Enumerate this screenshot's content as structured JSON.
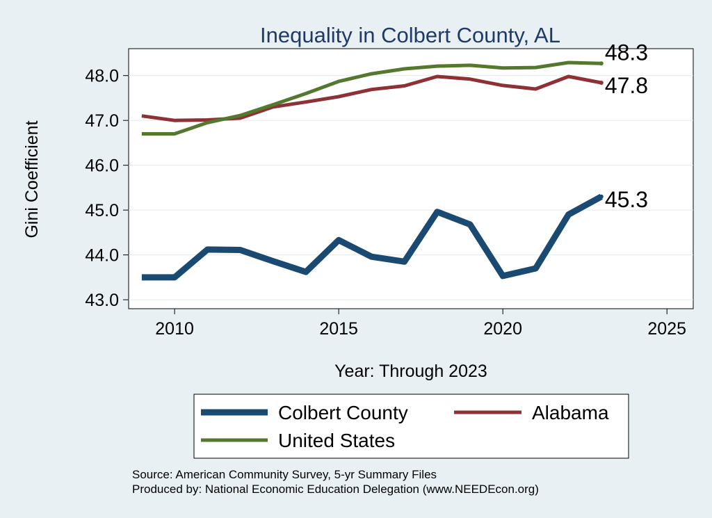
{
  "chart_data": {
    "type": "line",
    "title": "Inequality in Colbert County, AL",
    "xlabel": "Year: Through 2023",
    "ylabel": "Gini Coefficient",
    "xlim": [
      2008.6,
      2025.8
    ],
    "ylim": [
      42.8,
      48.6
    ],
    "x_ticks": [
      2010,
      2015,
      2020,
      2025
    ],
    "y_ticks": [
      43.0,
      44.0,
      45.0,
      46.0,
      47.0,
      48.0
    ],
    "y_tick_labels": [
      "43.0",
      "44.0",
      "45.0",
      "46.0",
      "47.0",
      "48.0"
    ],
    "grid": true,
    "x": [
      2009,
      2010,
      2011,
      2012,
      2013,
      2014,
      2015,
      2016,
      2017,
      2018,
      2019,
      2020,
      2021,
      2022,
      2023
    ],
    "series": [
      {
        "name": "Colbert County",
        "color": "#1a4a72",
        "values": [
          43.5,
          43.5,
          44.12,
          44.11,
          43.86,
          43.62,
          44.33,
          43.96,
          43.85,
          44.96,
          44.68,
          43.53,
          43.7,
          44.9,
          45.3
        ],
        "end_label": "45.3"
      },
      {
        "name": "Alabama",
        "color": "#8e3137",
        "values": [
          47.1,
          47.0,
          47.01,
          47.05,
          47.3,
          47.41,
          47.53,
          47.69,
          47.77,
          47.98,
          47.92,
          47.78,
          47.7,
          47.98,
          47.84
        ],
        "end_label": "47.8"
      },
      {
        "name": "United States",
        "color": "#55782f",
        "values": [
          46.7,
          46.7,
          46.95,
          47.11,
          47.35,
          47.6,
          47.87,
          48.04,
          48.15,
          48.21,
          48.23,
          48.17,
          48.18,
          48.29,
          48.27
        ],
        "end_label": "48.3"
      }
    ],
    "legend": {
      "position": "bottom",
      "entries": [
        "Colbert County",
        "Alabama",
        "United States"
      ]
    }
  },
  "source_line_1": "Source: American Community Survey, 5-yr Summary Files",
  "source_line_2": "Produced by: National Economic Education Delegation (www.NEEDEcon.org)"
}
